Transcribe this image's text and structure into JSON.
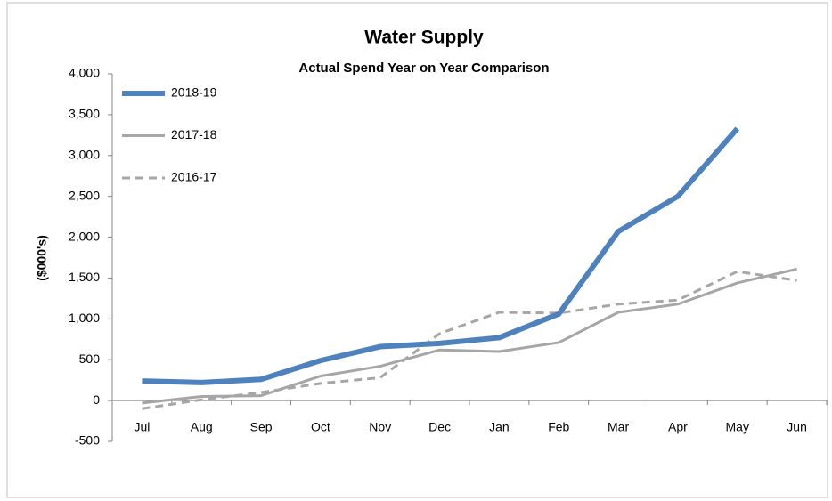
{
  "chart_data": {
    "type": "line",
    "title": "Water Supply",
    "subtitle": "Actual Spend Year on Year Comparison",
    "y_label": "($000's)",
    "categories": [
      "Jul",
      "Aug",
      "Sep",
      "Oct",
      "Nov",
      "Dec",
      "Jan",
      "Feb",
      "Mar",
      "Apr",
      "May",
      "Jun"
    ],
    "series": [
      {
        "name": "2018-19",
        "color": "#4f81bd",
        "width": 6,
        "dash": false,
        "values": [
          240,
          220,
          260,
          490,
          660,
          700,
          770,
          1060,
          2070,
          2500,
          3330,
          null
        ]
      },
      {
        "name": "2017-18",
        "color": "#a6a6a6",
        "width": 3,
        "dash": false,
        "values": [
          -30,
          50,
          60,
          300,
          420,
          620,
          600,
          710,
          1080,
          1180,
          1440,
          1610
        ]
      },
      {
        "name": "2016-17",
        "color": "#a6a6a6",
        "width": 3,
        "dash": true,
        "values": [
          -100,
          10,
          100,
          210,
          280,
          820,
          1080,
          1070,
          1180,
          1230,
          1580,
          1470
        ]
      }
    ],
    "ylim": [
      -500,
      4000
    ],
    "yticks": [
      -500,
      0,
      500,
      {
        "value": 1000,
        "label": "1,000"
      },
      {
        "value": 1500,
        "label": "1,500"
      },
      {
        "value": 2000,
        "label": "2,000"
      },
      {
        "value": 2500,
        "label": "2,500"
      },
      {
        "value": 3000,
        "label": "3,000"
      },
      {
        "value": 3500,
        "label": "3,500"
      },
      {
        "value": 4000,
        "label": "4,000"
      }
    ],
    "grid": false,
    "legend": "top-left"
  }
}
